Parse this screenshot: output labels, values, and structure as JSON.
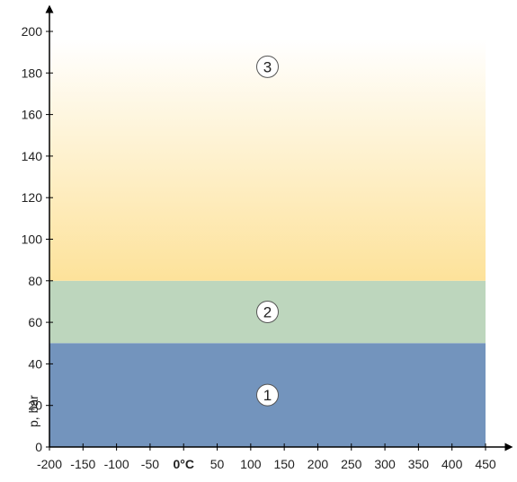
{
  "chart_data": {
    "type": "area",
    "title": "",
    "xlabel": "",
    "ylabel": "p, bar",
    "xlim": [
      -200,
      450
    ],
    "ylim": [
      0,
      200
    ],
    "x_ticks": [
      -200,
      -150,
      -100,
      -50,
      0,
      50,
      100,
      150,
      200,
      250,
      300,
      350,
      400,
      450
    ],
    "x_tick_labels": [
      "-200",
      "-150",
      "-100",
      "-50",
      "0°C",
      "50",
      "100",
      "150",
      "200",
      "250",
      "300",
      "350",
      "400",
      "450"
    ],
    "x_bold_tick": "0°C",
    "y_ticks": [
      0,
      20,
      40,
      60,
      80,
      100,
      120,
      140,
      160,
      180,
      200
    ],
    "y_tick_labels": [
      "0",
      "20",
      "40",
      "60",
      "80",
      "100",
      "120",
      "140",
      "160",
      "180",
      "200"
    ],
    "grid": false,
    "legend": "none",
    "zones": [
      {
        "label": "1",
        "x_range": [
          -200,
          450
        ],
        "y_range": [
          0,
          50
        ],
        "color": "#7394bd",
        "marker_at": [
          125,
          25
        ]
      },
      {
        "label": "2",
        "x_range": [
          -200,
          450
        ],
        "y_range": [
          50,
          80
        ],
        "color": "#bdd6bd",
        "marker_at": [
          125,
          65
        ]
      },
      {
        "label": "3",
        "x_range": [
          -200,
          450
        ],
        "y_range": [
          80,
          196
        ],
        "color_bottom": "#fde29a",
        "color_top": "#ffffff",
        "marker_at": [
          125,
          183
        ]
      }
    ]
  }
}
